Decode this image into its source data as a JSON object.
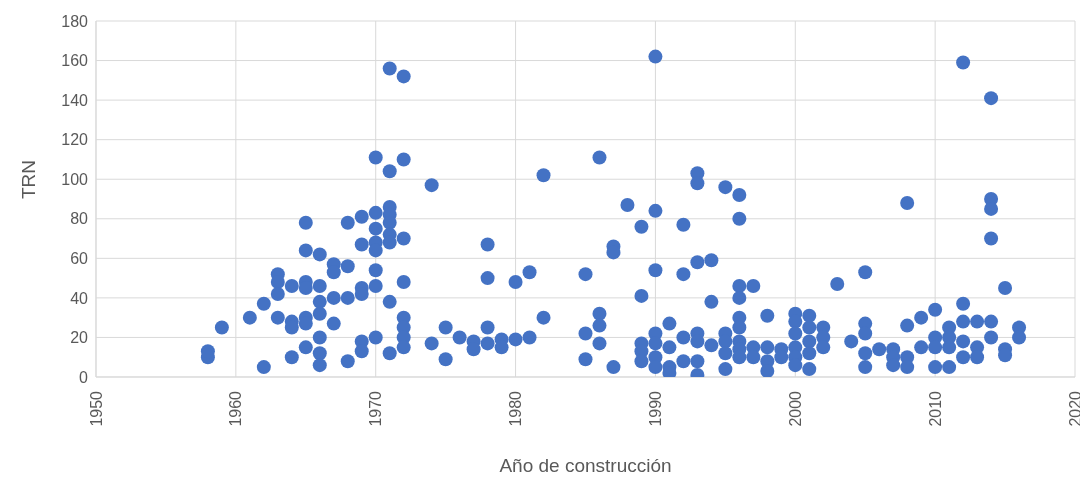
{
  "chart_data": {
    "type": "scatter",
    "xlabel": "Año de construcción",
    "ylabel": "TRN",
    "xlim": [
      1950,
      2020
    ],
    "xticks": [
      1950,
      1960,
      1970,
      1980,
      1990,
      2000,
      2010,
      2020
    ],
    "ylim": [
      0,
      180
    ],
    "yticks": [
      0,
      20,
      40,
      60,
      80,
      100,
      120,
      140,
      160,
      180
    ],
    "grid": true,
    "marker": "circle",
    "series": [
      {
        "color": "#4472c4",
        "x": [
          1958,
          1958,
          1959,
          1961,
          1962,
          1962,
          1963,
          1963,
          1963,
          1963,
          1964,
          1964,
          1964,
          1964,
          1965,
          1965,
          1965,
          1965,
          1965,
          1965,
          1965,
          1966,
          1966,
          1966,
          1966,
          1966,
          1966,
          1966,
          1967,
          1967,
          1967,
          1967,
          1968,
          1968,
          1968,
          1968,
          1969,
          1969,
          1969,
          1969,
          1969,
          1969,
          1970,
          1970,
          1970,
          1970,
          1970,
          1970,
          1970,
          1970,
          1971,
          1971,
          1971,
          1971,
          1971,
          1971,
          1971,
          1971,
          1971,
          1972,
          1972,
          1972,
          1972,
          1972,
          1972,
          1972,
          1972,
          1974,
          1974,
          1975,
          1975,
          1976,
          1977,
          1977,
          1978,
          1978,
          1978,
          1978,
          1979,
          1979,
          1980,
          1980,
          1981,
          1981,
          1982,
          1982,
          1985,
          1985,
          1985,
          1986,
          1986,
          1986,
          1986,
          1987,
          1987,
          1987,
          1988,
          1989,
          1989,
          1989,
          1989,
          1989,
          1990,
          1990,
          1990,
          1990,
          1990,
          1990,
          1990,
          1991,
          1991,
          1991,
          1991,
          1992,
          1992,
          1992,
          1992,
          1993,
          1993,
          1993,
          1993,
          1993,
          1993,
          1993,
          1994,
          1994,
          1994,
          1995,
          1995,
          1995,
          1995,
          1995,
          1996,
          1996,
          1996,
          1996,
          1996,
          1996,
          1996,
          1996,
          1996,
          1997,
          1997,
          1997,
          1998,
          1998,
          1998,
          1998,
          1999,
          1999,
          2000,
          2000,
          2000,
          2000,
          2000,
          2000,
          2001,
          2001,
          2001,
          2001,
          2001,
          2002,
          2002,
          2002,
          2003,
          2004,
          2005,
          2005,
          2005,
          2005,
          2005,
          2006,
          2007,
          2007,
          2007,
          2008,
          2008,
          2008,
          2008,
          2009,
          2009,
          2010,
          2010,
          2010,
          2010,
          2011,
          2011,
          2011,
          2011,
          2012,
          2012,
          2012,
          2012,
          2012,
          2013,
          2013,
          2013,
          2014,
          2014,
          2014,
          2014,
          2014,
          2014,
          2015,
          2015,
          2015,
          2016,
          2016
        ],
        "values": [
          10,
          13,
          25,
          30,
          5,
          37,
          52,
          48,
          42,
          30,
          46,
          28,
          25,
          10,
          78,
          64,
          48,
          45,
          30,
          27,
          15,
          62,
          46,
          38,
          32,
          20,
          12,
          6,
          57,
          53,
          40,
          27,
          78,
          56,
          40,
          8,
          81,
          67,
          45,
          42,
          18,
          13,
          111,
          83,
          75,
          68,
          64,
          54,
          46,
          20,
          156,
          104,
          86,
          82,
          78,
          72,
          68,
          38,
          12,
          152,
          110,
          70,
          48,
          30,
          25,
          20,
          15,
          97,
          17,
          25,
          9,
          20,
          18,
          14,
          67,
          50,
          25,
          17,
          19,
          15,
          48,
          19,
          53,
          20,
          102,
          30,
          52,
          22,
          9,
          111,
          32,
          26,
          17,
          66,
          63,
          5,
          87,
          76,
          41,
          17,
          13,
          8,
          162,
          84,
          54,
          22,
          17,
          10,
          5,
          27,
          15,
          5,
          2,
          77,
          52,
          20,
          8,
          103,
          98,
          58,
          22,
          18,
          8,
          1,
          59,
          38,
          16,
          96,
          22,
          18,
          12,
          4,
          92,
          80,
          46,
          40,
          30,
          25,
          18,
          14,
          10,
          46,
          15,
          10,
          31,
          15,
          8,
          3,
          14,
          10,
          32,
          28,
          22,
          15,
          10,
          6,
          31,
          25,
          18,
          12,
          4,
          25,
          20,
          15,
          47,
          18,
          53,
          27,
          22,
          12,
          5,
          14,
          14,
          10,
          6,
          88,
          26,
          10,
          5,
          30,
          15,
          34,
          20,
          15,
          5,
          25,
          20,
          15,
          5,
          159,
          37,
          28,
          18,
          10,
          28,
          15,
          10,
          141,
          90,
          85,
          70,
          28,
          20,
          45,
          14,
          11,
          25,
          20
        ]
      }
    ]
  }
}
